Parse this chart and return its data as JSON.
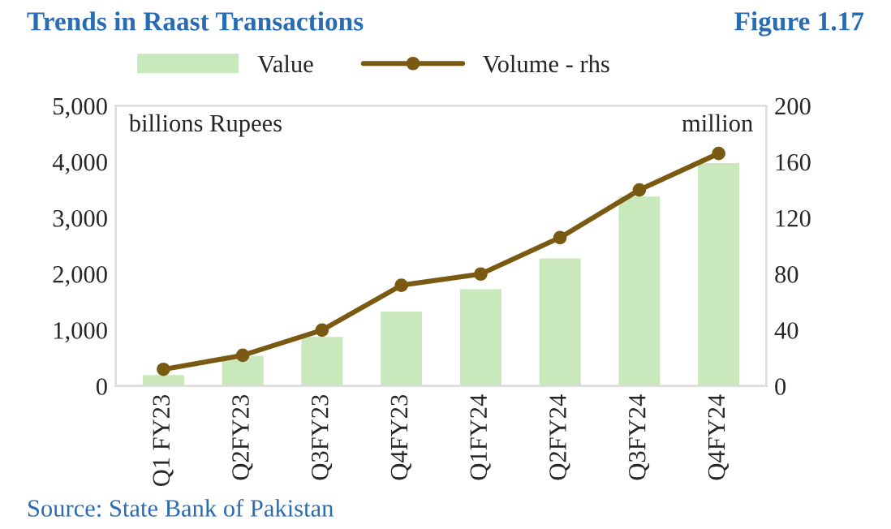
{
  "chart_data": {
    "type": "bar",
    "title": "Trends in Raast Transactions",
    "subtitle": "Figure 1.17",
    "categories": [
      "Q1 FY23",
      "Q2FY23",
      "Q3FY23",
      "Q4FY23",
      "Q1FY24",
      "Q2FY24",
      "Q3FY24",
      "Q4FY24"
    ],
    "series": [
      {
        "name": "Value",
        "color": "#c9e8bb",
        "values": [
          220,
          560,
          900,
          1350,
          1750,
          2300,
          3400,
          4000
        ]
      },
      {
        "name": "Volume - rhs",
        "type": "line",
        "axis": "y2",
        "color": "#7a5a12",
        "marker": "circle",
        "values": [
          12,
          22,
          40,
          72,
          80,
          106,
          140,
          166
        ]
      }
    ],
    "ylabel": "billions Rupees",
    "y2label": "million",
    "ylim": [
      0,
      5000
    ],
    "yticks": [
      {
        "value": 0,
        "label": "0"
      },
      {
        "value": 1000,
        "label": "1,000"
      },
      {
        "value": 2000,
        "label": "2,000"
      },
      {
        "value": 3000,
        "label": "3,000"
      },
      {
        "value": 4000,
        "label": "4,000"
      },
      {
        "value": 5000,
        "label": "5,000"
      }
    ],
    "y2lim": [
      0,
      200
    ],
    "y2ticks": [
      0,
      40,
      80,
      120,
      160,
      200
    ],
    "legend": "top",
    "grid": false,
    "annotations": [
      "Source: State Bank of Pakistan"
    ]
  }
}
